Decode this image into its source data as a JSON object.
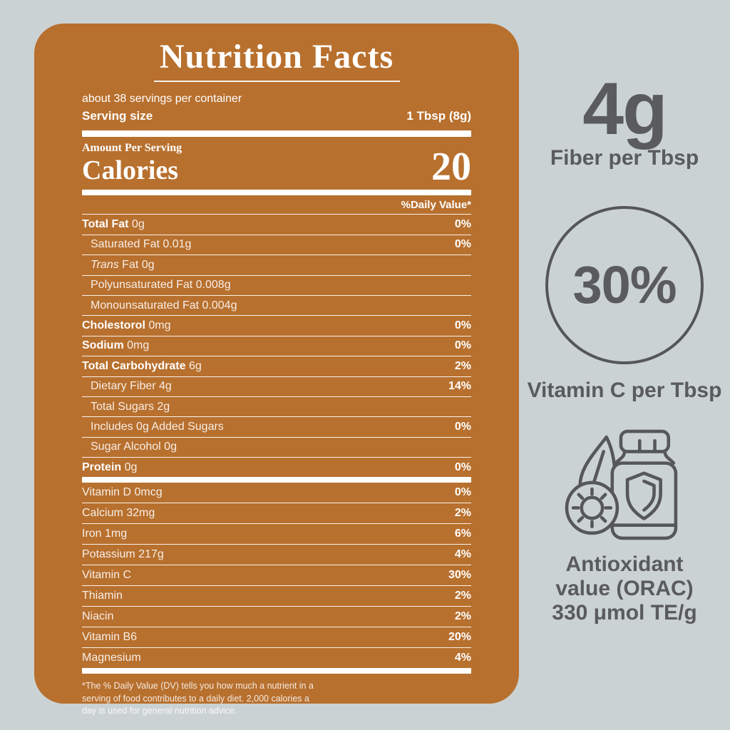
{
  "colors": {
    "background": "#cbd2d4",
    "panel": "#b8702e",
    "label_text": "#ffffff",
    "sidebar_text": "#595b5c",
    "icon_stroke": "#55575a"
  },
  "panel": {
    "title": "Nutrition Facts",
    "servings_text": "about 38 servings per container",
    "serving_size_label": "Serving size",
    "serving_size_value": "1 Tbsp (8g)",
    "amount_per_serving_label": "Amount Per Serving",
    "calories_label": "Calories",
    "calories_value": "20",
    "daily_value_header": "%Daily Value*",
    "rows": [
      {
        "label": "Total Fat",
        "amount": "0g",
        "percent": "0%",
        "style": "bold"
      },
      {
        "label": "Saturated Fat",
        "amount": "0.01g",
        "percent": "0%",
        "style": "indent"
      },
      {
        "label": "Trans",
        "amount": "Fat 0g",
        "percent": "",
        "style": "indent-italic"
      },
      {
        "label": "Polyunsaturated Fat",
        "amount": "0.008g",
        "percent": "",
        "style": "indent"
      },
      {
        "label": "Monounsaturated Fat",
        "amount": "0.004g",
        "percent": "",
        "style": "indent"
      },
      {
        "label": "Cholestorol",
        "amount": "0mg",
        "percent": "0%",
        "style": "bold"
      },
      {
        "label": "Sodium",
        "amount": "0mg",
        "percent": "0%",
        "style": "bold"
      },
      {
        "label": "Total Carbohydrate",
        "amount": "6g",
        "percent": "2%",
        "style": "bold"
      },
      {
        "label": "Dietary Fiber",
        "amount": "4g",
        "percent": "14%",
        "style": "indent"
      },
      {
        "label": "Total Sugars",
        "amount": "2g",
        "percent": "",
        "style": "indent"
      },
      {
        "label": "Includes 0g Added Sugars",
        "amount": "",
        "percent": "0%",
        "style": "indent"
      },
      {
        "label": "Sugar Alcohol",
        "amount": "0g",
        "percent": "",
        "style": "indent"
      },
      {
        "label": "Protein",
        "amount": "0g",
        "percent": "0%",
        "style": "bold"
      }
    ],
    "vitamin_rows": [
      {
        "label": "Vitamin D",
        "amount": "0mcg",
        "percent": "0%"
      },
      {
        "label": "Calcium",
        "amount": "32mg",
        "percent": "2%"
      },
      {
        "label": "Iron",
        "amount": "1mg",
        "percent": "6%"
      },
      {
        "label": "Potassium",
        "amount": "217g",
        "percent": "4%"
      },
      {
        "label": "Vitamin C",
        "amount": "",
        "percent": "30%"
      },
      {
        "label": "Thiamin",
        "amount": "",
        "percent": "2%"
      },
      {
        "label": "Niacin",
        "amount": "",
        "percent": "2%"
      },
      {
        "label": "Vitamin B6",
        "amount": "",
        "percent": "20%"
      },
      {
        "label": "Magnesium",
        "amount": "",
        "percent": "4%"
      }
    ],
    "footnote_lines": [
      "*The % Daily Value (DV) tells you how much a nutrient in a",
      "serving of food contributes to a daily diet. 2,000 calories a",
      "day is used for general nutrition advice."
    ]
  },
  "sidebar": {
    "fiber": {
      "value": "4g",
      "label": "Fiber per Tbsp"
    },
    "vitamin_c": {
      "value": "30%",
      "label": "Vitamin C per Tbsp"
    },
    "antioxidant": {
      "icon": "antioxidant-bottle-shield-icon",
      "lines": [
        "Antioxidant",
        "value (ORAC)",
        "330 μmol TE/g"
      ]
    }
  }
}
